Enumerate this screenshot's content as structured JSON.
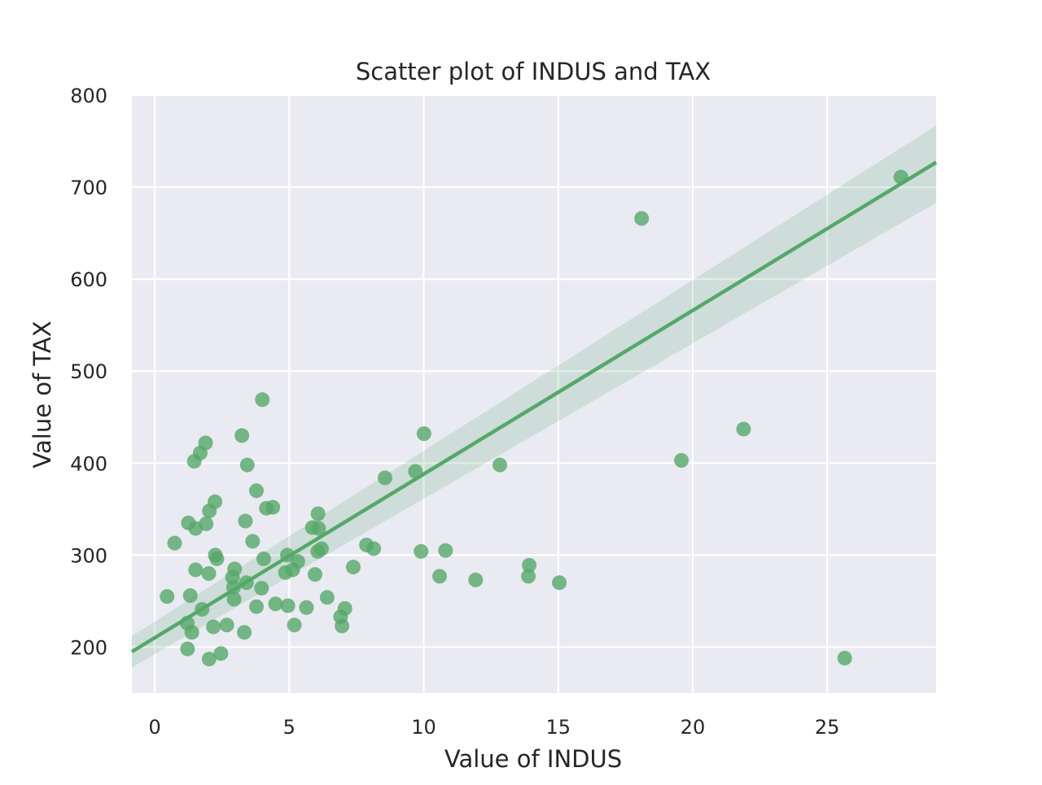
{
  "chart_data": {
    "type": "scatter",
    "title": "Scatter plot of INDUS and TAX",
    "xlabel": "Value of INDUS",
    "ylabel": "Value of TAX",
    "xlim": [
      -0.85,
      29.05
    ],
    "ylim": [
      150,
      800
    ],
    "xticks": [
      0,
      5,
      10,
      15,
      20,
      25
    ],
    "yticks": [
      200,
      300,
      400,
      500,
      600,
      700,
      800
    ],
    "grid": true,
    "colors": {
      "background": "#eaeaf2",
      "grid": "#ffffff",
      "points": "#55a868",
      "regression_line": "#55a868",
      "confidence_band": "#55a868"
    },
    "points": [
      {
        "x": 0.46,
        "y": 255
      },
      {
        "x": 0.74,
        "y": 313
      },
      {
        "x": 1.21,
        "y": 226
      },
      {
        "x": 1.22,
        "y": 198
      },
      {
        "x": 1.25,
        "y": 335
      },
      {
        "x": 1.32,
        "y": 256
      },
      {
        "x": 1.38,
        "y": 216
      },
      {
        "x": 1.47,
        "y": 402
      },
      {
        "x": 1.52,
        "y": 284
      },
      {
        "x": 1.52,
        "y": 329
      },
      {
        "x": 1.69,
        "y": 411
      },
      {
        "x": 1.76,
        "y": 241
      },
      {
        "x": 1.89,
        "y": 422
      },
      {
        "x": 1.91,
        "y": 334
      },
      {
        "x": 2.01,
        "y": 280
      },
      {
        "x": 2.02,
        "y": 187
      },
      {
        "x": 2.03,
        "y": 348
      },
      {
        "x": 2.18,
        "y": 222
      },
      {
        "x": 2.24,
        "y": 358
      },
      {
        "x": 2.25,
        "y": 300
      },
      {
        "x": 2.31,
        "y": 296
      },
      {
        "x": 2.46,
        "y": 193
      },
      {
        "x": 2.68,
        "y": 224
      },
      {
        "x": 2.89,
        "y": 276
      },
      {
        "x": 2.93,
        "y": 265
      },
      {
        "x": 2.95,
        "y": 252
      },
      {
        "x": 2.97,
        "y": 285
      },
      {
        "x": 3.24,
        "y": 430
      },
      {
        "x": 3.33,
        "y": 216
      },
      {
        "x": 3.37,
        "y": 337
      },
      {
        "x": 3.41,
        "y": 270
      },
      {
        "x": 3.44,
        "y": 398
      },
      {
        "x": 3.64,
        "y": 315
      },
      {
        "x": 3.78,
        "y": 244
      },
      {
        "x": 3.78,
        "y": 370
      },
      {
        "x": 3.97,
        "y": 264
      },
      {
        "x": 4.0,
        "y": 469
      },
      {
        "x": 4.05,
        "y": 296
      },
      {
        "x": 4.15,
        "y": 351
      },
      {
        "x": 4.39,
        "y": 352
      },
      {
        "x": 4.49,
        "y": 247
      },
      {
        "x": 4.86,
        "y": 281
      },
      {
        "x": 4.93,
        "y": 300
      },
      {
        "x": 4.95,
        "y": 245
      },
      {
        "x": 5.13,
        "y": 284
      },
      {
        "x": 5.19,
        "y": 224
      },
      {
        "x": 5.32,
        "y": 293
      },
      {
        "x": 5.64,
        "y": 243
      },
      {
        "x": 5.86,
        "y": 330
      },
      {
        "x": 5.96,
        "y": 279
      },
      {
        "x": 6.06,
        "y": 304
      },
      {
        "x": 6.07,
        "y": 345
      },
      {
        "x": 6.09,
        "y": 329
      },
      {
        "x": 6.2,
        "y": 307
      },
      {
        "x": 6.41,
        "y": 254
      },
      {
        "x": 6.91,
        "y": 233
      },
      {
        "x": 6.96,
        "y": 223
      },
      {
        "x": 7.07,
        "y": 242
      },
      {
        "x": 7.38,
        "y": 287
      },
      {
        "x": 7.87,
        "y": 311
      },
      {
        "x": 8.14,
        "y": 307
      },
      {
        "x": 8.56,
        "y": 384
      },
      {
        "x": 9.69,
        "y": 391
      },
      {
        "x": 9.9,
        "y": 304
      },
      {
        "x": 10.01,
        "y": 432
      },
      {
        "x": 10.59,
        "y": 277
      },
      {
        "x": 10.81,
        "y": 305
      },
      {
        "x": 11.93,
        "y": 273
      },
      {
        "x": 12.83,
        "y": 398
      },
      {
        "x": 13.89,
        "y": 277
      },
      {
        "x": 13.92,
        "y": 289
      },
      {
        "x": 15.04,
        "y": 270
      },
      {
        "x": 18.1,
        "y": 666
      },
      {
        "x": 19.58,
        "y": 403
      },
      {
        "x": 21.89,
        "y": 437
      },
      {
        "x": 25.65,
        "y": 188
      },
      {
        "x": 27.74,
        "y": 711
      }
    ],
    "regression": {
      "x_range": [
        -0.85,
        29.05
      ],
      "y_range": [
        195,
        727
      ],
      "ci_lower": [
        178,
        683
      ],
      "ci_upper": [
        212,
        767
      ]
    }
  }
}
